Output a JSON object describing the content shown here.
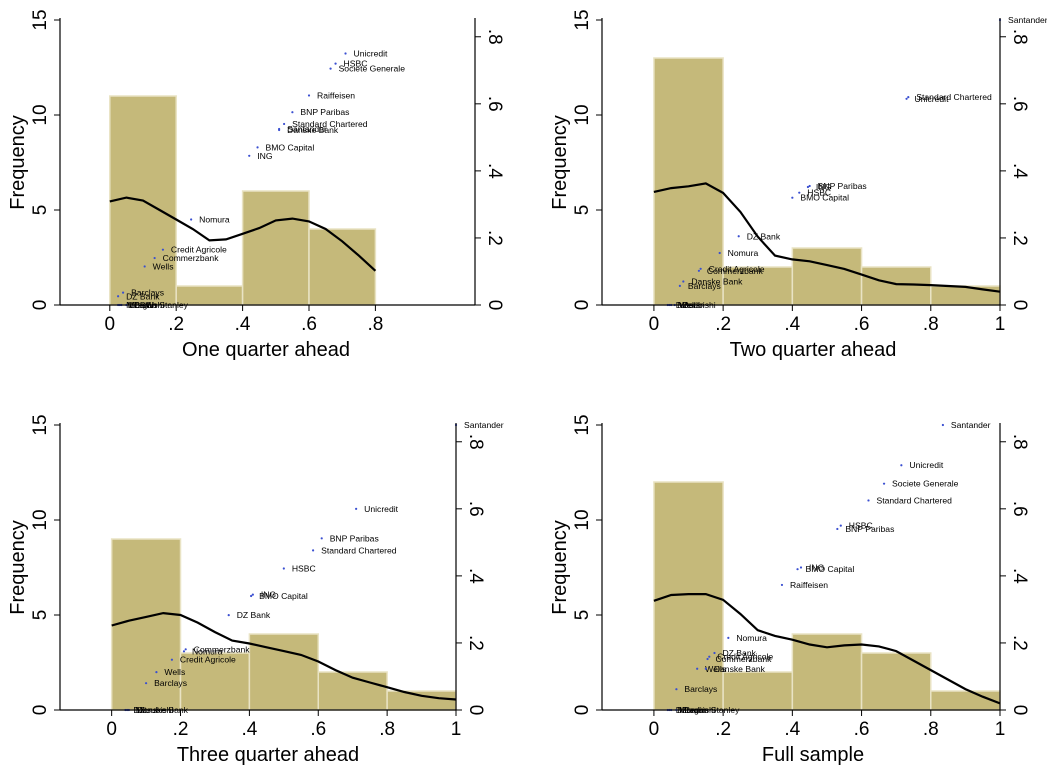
{
  "chart_data": [
    {
      "type": "histogram",
      "xlabel": "One quarter ahead",
      "ylabel": "Frequency",
      "xlim": [
        -0.15,
        1.1
      ],
      "ylim": [
        0,
        15
      ],
      "y2lim": [
        0,
        0.85
      ],
      "xticks": [
        "0",
        ".2",
        ".4",
        ".6",
        ".8"
      ],
      "xtick_values": [
        0,
        0.2,
        0.4,
        0.6,
        0.8
      ],
      "yticks": [
        "0",
        "5",
        "10",
        "15"
      ],
      "ytick_values": [
        0,
        5,
        10,
        15
      ],
      "y2ticks": [
        "0",
        ".2",
        ".4",
        ".6",
        ".8"
      ],
      "y2tick_values": [
        0,
        0.2,
        0.4,
        0.6,
        0.8
      ],
      "bins": [
        {
          "start": 0,
          "end": 0.2,
          "count": 11
        },
        {
          "start": 0.2,
          "end": 0.4,
          "count": 1
        },
        {
          "start": 0.4,
          "end": 0.6,
          "count": 6
        },
        {
          "start": 0.6,
          "end": 0.8,
          "count": 4
        }
      ],
      "kde": [
        [
          0,
          5.45
        ],
        [
          0.05,
          5.65
        ],
        [
          0.1,
          5.5
        ],
        [
          0.15,
          5.0
        ],
        [
          0.2,
          4.5
        ],
        [
          0.25,
          4.0
        ],
        [
          0.3,
          3.4
        ],
        [
          0.35,
          3.45
        ],
        [
          0.4,
          3.75
        ],
        [
          0.45,
          4.05
        ],
        [
          0.5,
          4.45
        ],
        [
          0.55,
          4.55
        ],
        [
          0.6,
          4.4
        ],
        [
          0.65,
          4.0
        ],
        [
          0.7,
          3.35
        ],
        [
          0.75,
          2.6
        ],
        [
          0.8,
          1.8
        ]
      ],
      "points": [
        {
          "label": "Unicredit",
          "x": 0.71,
          "y": 0.75
        },
        {
          "label": "HSBC",
          "x": 0.68,
          "y": 0.72
        },
        {
          "label": "Societe Generale",
          "x": 0.665,
          "y": 0.705
        },
        {
          "label": "Raiffeisen",
          "x": 0.6,
          "y": 0.625
        },
        {
          "label": "BNP Paribas",
          "x": 0.55,
          "y": 0.575
        },
        {
          "label": "Standard Chartered",
          "x": 0.525,
          "y": 0.54
        },
        {
          "label": "Santander",
          "x": 0.51,
          "y": 0.525
        },
        {
          "label": "Danske Bank",
          "x": 0.51,
          "y": 0.522
        },
        {
          "label": "BMO Capital",
          "x": 0.445,
          "y": 0.47
        },
        {
          "label": "ING",
          "x": 0.42,
          "y": 0.445
        },
        {
          "label": "Nomura",
          "x": 0.245,
          "y": 0.255
        },
        {
          "label": "Credit Agricole",
          "x": 0.16,
          "y": 0.165
        },
        {
          "label": "Commerzbank",
          "x": 0.135,
          "y": 0.14
        },
        {
          "label": "Wells",
          "x": 0.105,
          "y": 0.115
        },
        {
          "label": "Barclays",
          "x": 0.04,
          "y": 0.037
        },
        {
          "label": "DZ Bank",
          "x": 0.025,
          "y": 0.026
        },
        {
          "label": "Mitsubishi",
          "x": 0.025,
          "y": 0.0
        },
        {
          "label": "Morgan Stanley",
          "x": 0.03,
          "y": 0.0
        },
        {
          "label": "LBBW",
          "x": 0.035,
          "y": 0.0
        },
        {
          "label": "Berlin",
          "x": 0.05,
          "y": 0.0
        }
      ]
    },
    {
      "type": "histogram",
      "xlabel": "Two quarter ahead",
      "ylabel": "Frequency",
      "xlim": [
        -0.15,
        1.0
      ],
      "ylim": [
        0,
        15
      ],
      "y2lim": [
        0,
        0.85
      ],
      "xticks": [
        "0",
        ".2",
        ".4",
        ".6",
        ".8",
        "1"
      ],
      "xtick_values": [
        0,
        0.2,
        0.4,
        0.6,
        0.8,
        1
      ],
      "yticks": [
        "0",
        "5",
        "10",
        "15"
      ],
      "ytick_values": [
        0,
        5,
        10,
        15
      ],
      "y2ticks": [
        "0",
        ".2",
        ".4",
        ".6",
        ".8"
      ],
      "y2tick_values": [
        0,
        0.2,
        0.4,
        0.6,
        0.8
      ],
      "bins": [
        {
          "start": 0,
          "end": 0.2,
          "count": 13
        },
        {
          "start": 0.2,
          "end": 0.4,
          "count": 2
        },
        {
          "start": 0.4,
          "end": 0.6,
          "count": 3
        },
        {
          "start": 0.6,
          "end": 0.8,
          "count": 2
        },
        {
          "start": 0.8,
          "end": 1.0,
          "count": 1
        }
      ],
      "kde": [
        [
          0,
          5.95
        ],
        [
          0.05,
          6.15
        ],
        [
          0.1,
          6.25
        ],
        [
          0.15,
          6.4
        ],
        [
          0.2,
          5.9
        ],
        [
          0.25,
          4.9
        ],
        [
          0.3,
          3.6
        ],
        [
          0.35,
          2.6
        ],
        [
          0.4,
          2.4
        ],
        [
          0.45,
          2.3
        ],
        [
          0.5,
          2.1
        ],
        [
          0.55,
          1.9
        ],
        [
          0.6,
          1.6
        ],
        [
          0.65,
          1.3
        ],
        [
          0.7,
          1.1
        ],
        [
          0.75,
          1.08
        ],
        [
          0.8,
          1.05
        ],
        [
          0.85,
          1.0
        ],
        [
          0.9,
          0.95
        ],
        [
          0.95,
          0.82
        ],
        [
          1.0,
          0.7
        ]
      ],
      "points": [
        {
          "label": "Santander",
          "x": 1.0,
          "y": 0.85
        },
        {
          "label": "Standard Chartered",
          "x": 0.735,
          "y": 0.62
        },
        {
          "label": "Unicredit",
          "x": 0.73,
          "y": 0.615
        },
        {
          "label": "BNP Paribas",
          "x": 0.45,
          "y": 0.355
        },
        {
          "label": "ING",
          "x": 0.445,
          "y": 0.352
        },
        {
          "label": "HSBC",
          "x": 0.42,
          "y": 0.335
        },
        {
          "label": "BMO Capital",
          "x": 0.4,
          "y": 0.32
        },
        {
          "label": "DZ Bank",
          "x": 0.245,
          "y": 0.205
        },
        {
          "label": "Nomura",
          "x": 0.19,
          "y": 0.155
        },
        {
          "label": "Credit Agricole",
          "x": 0.135,
          "y": 0.108
        },
        {
          "label": "Commerzbank",
          "x": 0.13,
          "y": 0.102
        },
        {
          "label": "Danske Bank",
          "x": 0.085,
          "y": 0.07
        },
        {
          "label": "Barclays",
          "x": 0.075,
          "y": 0.057
        },
        {
          "label": "DZ",
          "x": 0.04,
          "y": 0.0
        },
        {
          "label": "Mitsubishi",
          "x": 0.045,
          "y": 0.0
        },
        {
          "label": "Wells",
          "x": 0.05,
          "y": 0.0
        },
        {
          "label": "Berlin",
          "x": 0.06,
          "y": 0.0
        }
      ]
    },
    {
      "type": "histogram",
      "xlabel": "Three quarter ahead",
      "ylabel": "Frequency",
      "xlim": [
        -0.15,
        1.0
      ],
      "ylim": [
        0,
        15
      ],
      "y2lim": [
        0,
        0.85
      ],
      "xticks": [
        "0",
        ".2",
        ".4",
        ".6",
        ".8",
        "1"
      ],
      "xtick_values": [
        0,
        0.2,
        0.4,
        0.6,
        0.8,
        1
      ],
      "yticks": [
        "0",
        "5",
        "10",
        "15"
      ],
      "ytick_values": [
        0,
        5,
        10,
        15
      ],
      "y2ticks": [
        "0",
        ".2",
        ".4",
        ".6",
        ".8"
      ],
      "y2tick_values": [
        0,
        0.2,
        0.4,
        0.6,
        0.8
      ],
      "bins": [
        {
          "start": 0,
          "end": 0.2,
          "count": 9
        },
        {
          "start": 0.2,
          "end": 0.4,
          "count": 3
        },
        {
          "start": 0.4,
          "end": 0.6,
          "count": 4
        },
        {
          "start": 0.6,
          "end": 0.8,
          "count": 2
        },
        {
          "start": 0.8,
          "end": 1.0,
          "count": 1
        }
      ],
      "kde": [
        [
          0,
          4.45
        ],
        [
          0.05,
          4.7
        ],
        [
          0.1,
          4.9
        ],
        [
          0.15,
          5.1
        ],
        [
          0.2,
          5.0
        ],
        [
          0.25,
          4.6
        ],
        [
          0.3,
          4.1
        ],
        [
          0.35,
          3.65
        ],
        [
          0.4,
          3.5
        ],
        [
          0.45,
          3.3
        ],
        [
          0.5,
          3.1
        ],
        [
          0.55,
          2.9
        ],
        [
          0.6,
          2.55
        ],
        [
          0.65,
          2.1
        ],
        [
          0.7,
          1.7
        ],
        [
          0.75,
          1.45
        ],
        [
          0.8,
          1.2
        ],
        [
          0.85,
          0.95
        ],
        [
          0.9,
          0.75
        ],
        [
          0.95,
          0.62
        ],
        [
          1.0,
          0.55
        ]
      ],
      "points": [
        {
          "label": "Santander",
          "x": 1.0,
          "y": 0.85
        },
        {
          "label": "Unicredit",
          "x": 0.71,
          "y": 0.6
        },
        {
          "label": "BNP Paribas",
          "x": 0.61,
          "y": 0.512
        },
        {
          "label": "Standard Chartered",
          "x": 0.585,
          "y": 0.476
        },
        {
          "label": "HSBC",
          "x": 0.5,
          "y": 0.422
        },
        {
          "label": "ING",
          "x": 0.41,
          "y": 0.344
        },
        {
          "label": "BMO Capital",
          "x": 0.405,
          "y": 0.34
        },
        {
          "label": "DZ Bank",
          "x": 0.34,
          "y": 0.283
        },
        {
          "label": "Commerzbank",
          "x": 0.215,
          "y": 0.181
        },
        {
          "label": "Nomura",
          "x": 0.21,
          "y": 0.175
        },
        {
          "label": "Credit Agricole",
          "x": 0.175,
          "y": 0.15
        },
        {
          "label": "Wells",
          "x": 0.13,
          "y": 0.113
        },
        {
          "label": "Barclays",
          "x": 0.1,
          "y": 0.08
        },
        {
          "label": "DZ",
          "x": 0.04,
          "y": 0.0
        },
        {
          "label": "Mitsubishi",
          "x": 0.045,
          "y": 0.0
        },
        {
          "label": "Danske Bank",
          "x": 0.05,
          "y": 0.0
        }
      ]
    },
    {
      "type": "histogram",
      "xlabel": "Full sample",
      "ylabel": "Frequency",
      "xlim": [
        -0.15,
        1.0
      ],
      "ylim": [
        0,
        15
      ],
      "y2lim": [
        0,
        0.85
      ],
      "xticks": [
        "0",
        ".2",
        ".4",
        ".6",
        ".8",
        "1"
      ],
      "xtick_values": [
        0,
        0.2,
        0.4,
        0.6,
        0.8,
        1
      ],
      "yticks": [
        "0",
        "5",
        "10",
        "15"
      ],
      "ytick_values": [
        0,
        5,
        10,
        15
      ],
      "y2ticks": [
        "0",
        ".2",
        ".4",
        ".6",
        ".8"
      ],
      "y2tick_values": [
        0,
        0.2,
        0.4,
        0.6,
        0.8
      ],
      "bins": [
        {
          "start": 0,
          "end": 0.2,
          "count": 12
        },
        {
          "start": 0.2,
          "end": 0.4,
          "count": 2
        },
        {
          "start": 0.4,
          "end": 0.6,
          "count": 4
        },
        {
          "start": 0.6,
          "end": 0.8,
          "count": 3
        },
        {
          "start": 0.8,
          "end": 1.0,
          "count": 1
        }
      ],
      "kde": [
        [
          0,
          5.75
        ],
        [
          0.05,
          6.05
        ],
        [
          0.1,
          6.1
        ],
        [
          0.15,
          6.1
        ],
        [
          0.2,
          5.8
        ],
        [
          0.25,
          5.05
        ],
        [
          0.3,
          4.2
        ],
        [
          0.35,
          3.9
        ],
        [
          0.4,
          3.7
        ],
        [
          0.45,
          3.45
        ],
        [
          0.5,
          3.3
        ],
        [
          0.55,
          3.4
        ],
        [
          0.6,
          3.45
        ],
        [
          0.65,
          3.35
        ],
        [
          0.7,
          3.1
        ],
        [
          0.75,
          2.6
        ],
        [
          0.8,
          2.1
        ],
        [
          0.85,
          1.6
        ],
        [
          0.9,
          1.1
        ],
        [
          0.95,
          0.7
        ],
        [
          1.0,
          0.35
        ]
      ],
      "points": [
        {
          "label": "Santander",
          "x": 0.835,
          "y": 0.85
        },
        {
          "label": "Unicredit",
          "x": 0.715,
          "y": 0.73
        },
        {
          "label": "Societe Generale",
          "x": 0.665,
          "y": 0.675
        },
        {
          "label": "Standard Chartered",
          "x": 0.62,
          "y": 0.625
        },
        {
          "label": "HSBC",
          "x": 0.54,
          "y": 0.55
        },
        {
          "label": "BNP Paribas",
          "x": 0.53,
          "y": 0.54
        },
        {
          "label": "ING",
          "x": 0.425,
          "y": 0.425
        },
        {
          "label": "BMO Capital",
          "x": 0.415,
          "y": 0.42
        },
        {
          "label": "Raiffeisen",
          "x": 0.37,
          "y": 0.373
        },
        {
          "label": "Nomura",
          "x": 0.215,
          "y": 0.215
        },
        {
          "label": "DZ Bank",
          "x": 0.175,
          "y": 0.17
        },
        {
          "label": "Credit Agricole",
          "x": 0.16,
          "y": 0.159
        },
        {
          "label": "Commerzbank",
          "x": 0.155,
          "y": 0.152
        },
        {
          "label": "Wells",
          "x": 0.125,
          "y": 0.123
        },
        {
          "label": "Danske Bank",
          "x": 0.15,
          "y": 0.123
        },
        {
          "label": "Barclays",
          "x": 0.065,
          "y": 0.062
        },
        {
          "label": "DZ",
          "x": 0.04,
          "y": 0.0
        },
        {
          "label": "Mitsubishi",
          "x": 0.045,
          "y": 0.0
        },
        {
          "label": "Morgan Stanley",
          "x": 0.05,
          "y": 0.0
        },
        {
          "label": "Berlin",
          "x": 0.065,
          "y": 0.0
        }
      ]
    }
  ]
}
